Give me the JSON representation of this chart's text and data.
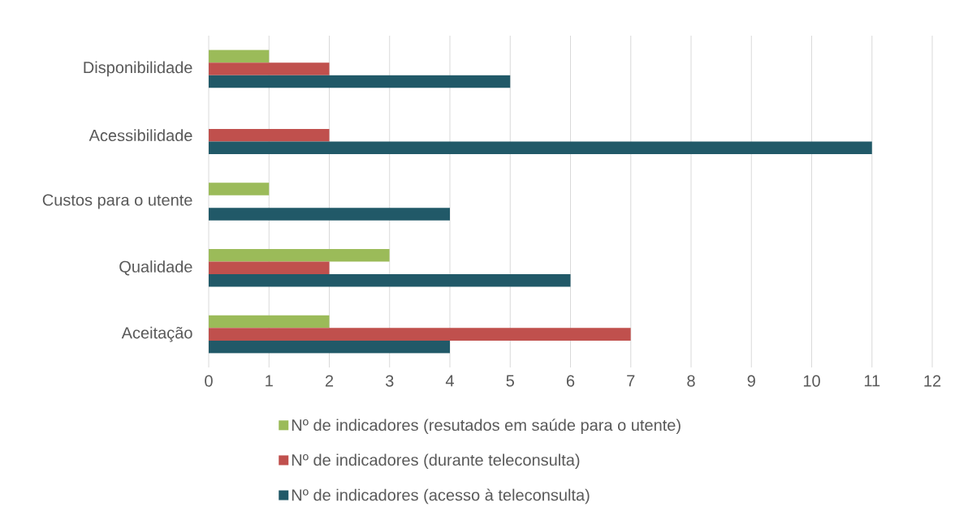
{
  "chart_data": {
    "type": "bar",
    "orientation": "horizontal",
    "categories": [
      "Disponibilidade",
      "Acessibilidade",
      "Custos para o utente",
      "Qualidade",
      "Aceitação"
    ],
    "series": [
      {
        "name": "Nº de indicadores (resutados em saúde para o utente)",
        "color": "#9bbb59",
        "values": [
          1,
          null,
          1,
          3,
          2
        ]
      },
      {
        "name": "Nº de indicadores (durante teleconsulta)",
        "color": "#c0504d",
        "values": [
          2,
          2,
          null,
          2,
          7
        ]
      },
      {
        "name": "Nº de indicadores (acesso à teleconsulta)",
        "color": "#215968",
        "values": [
          5,
          11,
          4,
          6,
          4
        ]
      }
    ],
    "xlim": [
      0,
      12
    ],
    "xticks": [
      0,
      1,
      2,
      3,
      4,
      5,
      6,
      7,
      8,
      9,
      10,
      11,
      12
    ],
    "grid": "x",
    "legend": "bottom"
  }
}
